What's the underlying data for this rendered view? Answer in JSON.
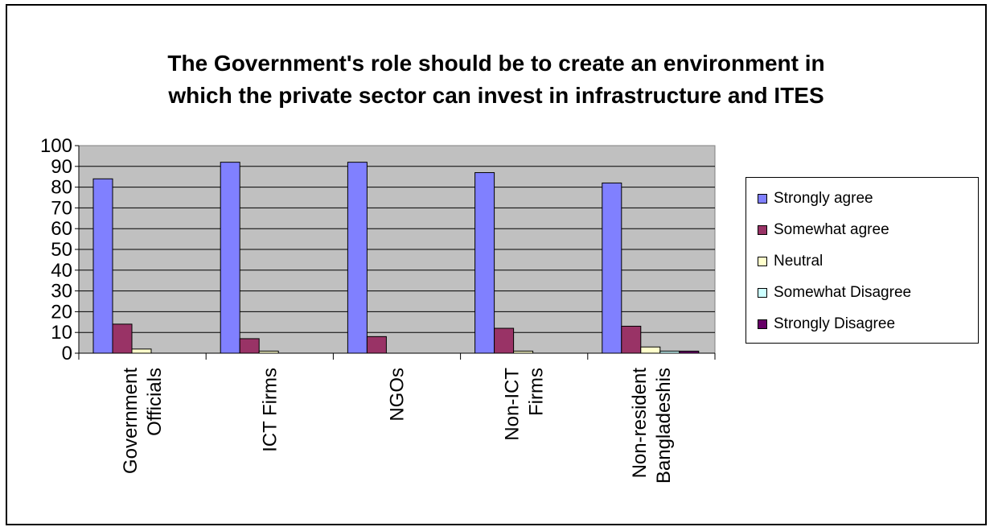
{
  "chart_data": {
    "type": "bar",
    "title_lines": [
      "The Government's role should be to create an environment in",
      "which the private sector can invest in infrastructure and ITES"
    ],
    "categories": [
      [
        "Government",
        "Officials"
      ],
      [
        "ICT Firms"
      ],
      [
        "NGOs"
      ],
      [
        "Non-ICT",
        "Firms"
      ],
      [
        "Non-resident",
        "Bangladeshis"
      ]
    ],
    "ylim": [
      0,
      100
    ],
    "yticks": [
      0,
      10,
      20,
      30,
      40,
      50,
      60,
      70,
      80,
      90,
      100
    ],
    "grid": true,
    "legend_position": "right",
    "series": [
      {
        "name": "Strongly agree",
        "color": "#8080ff",
        "values": [
          84,
          92,
          92,
          87,
          82
        ]
      },
      {
        "name": "Somewhat agree",
        "color": "#993366",
        "values": [
          14,
          7,
          8,
          12,
          13
        ]
      },
      {
        "name": "Neutral",
        "color": "#ffffcc",
        "values": [
          2,
          1,
          0,
          1,
          3
        ]
      },
      {
        "name": "Somewhat Disagree",
        "color": "#ccffff",
        "values": [
          0,
          0,
          0,
          0,
          1
        ]
      },
      {
        "name": "Strongly Disagree",
        "color": "#660066",
        "values": [
          0,
          0,
          0,
          0,
          1
        ]
      }
    ]
  }
}
